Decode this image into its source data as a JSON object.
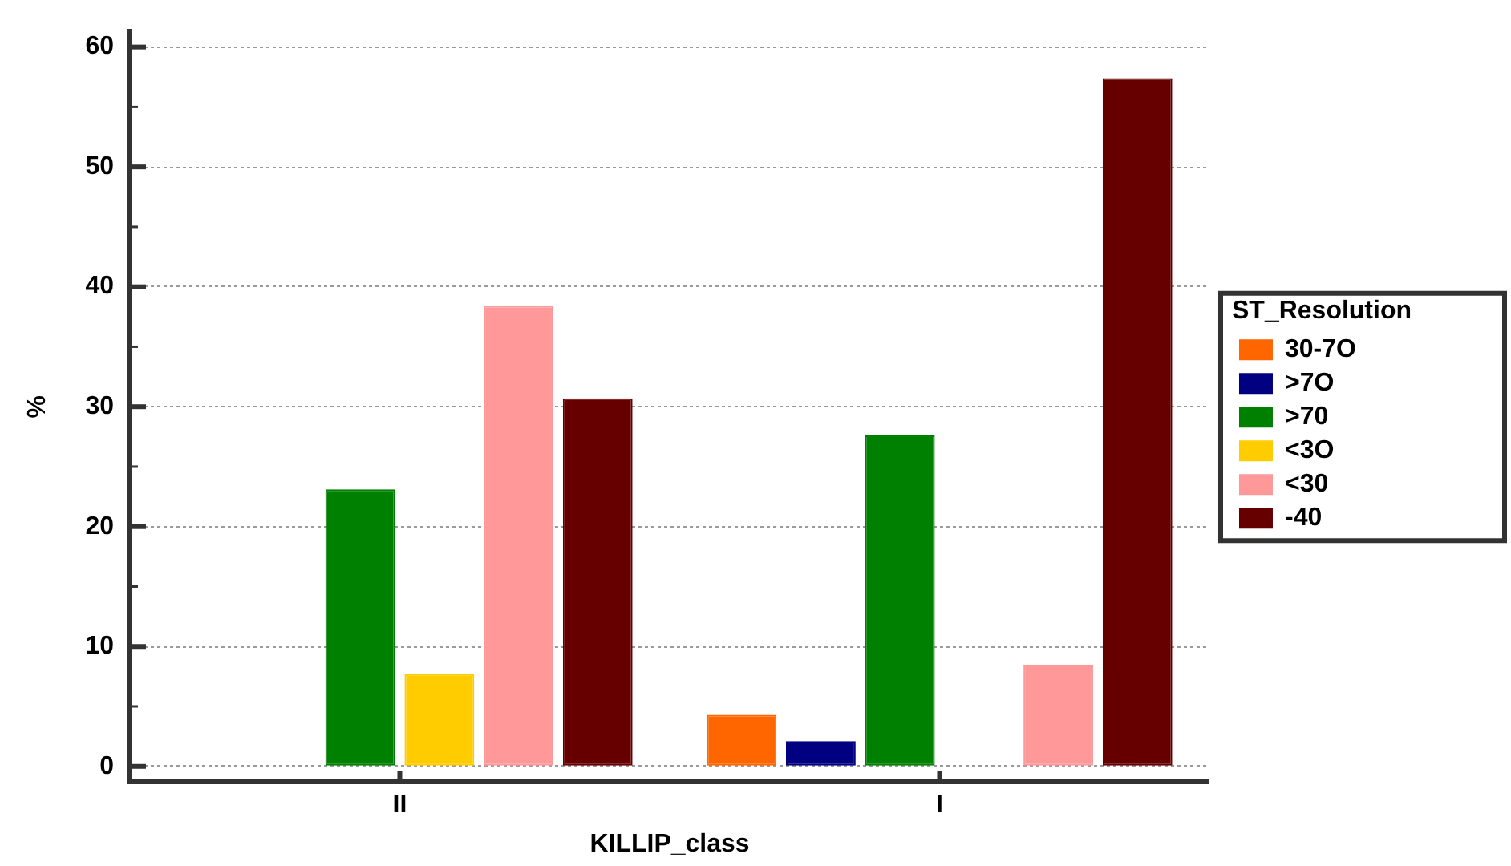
{
  "chart_data": {
    "type": "bar",
    "xlabel": "KILLIP_class",
    "ylabel": "%",
    "legend_title": "ST_Resolution",
    "categories": [
      "II",
      "I"
    ],
    "series": [
      {
        "name": "30-7O",
        "color": "#ff6600",
        "values": [
          null,
          4.3
        ]
      },
      {
        "name": ">7O",
        "color": "#000080",
        "values": [
          null,
          2.1
        ]
      },
      {
        "name": ">70",
        "color": "#008000",
        "values": [
          23.1,
          27.6
        ]
      },
      {
        "name": "<3O",
        "color": "#ffcc00",
        "values": [
          7.7,
          null
        ]
      },
      {
        "name": "<30",
        "color": "#ff9999",
        "values": [
          38.4,
          8.5
        ]
      },
      {
        "name": "-40",
        "color": "#660000",
        "values": [
          30.7,
          57.4
        ]
      }
    ],
    "ylim": [
      -1.3,
      61.3
    ],
    "yticks": [
      0,
      {
        "value": 5,
        "label": null
      },
      10,
      {
        "value": 15,
        "label": null
      },
      20,
      {
        "value": 25,
        "label": null
      },
      30,
      {
        "value": 35,
        "label": null
      },
      40,
      {
        "value": 45,
        "label": null
      },
      50,
      {
        "value": 55,
        "label": null
      },
      60
    ],
    "grid": "y",
    "legend": "right"
  }
}
